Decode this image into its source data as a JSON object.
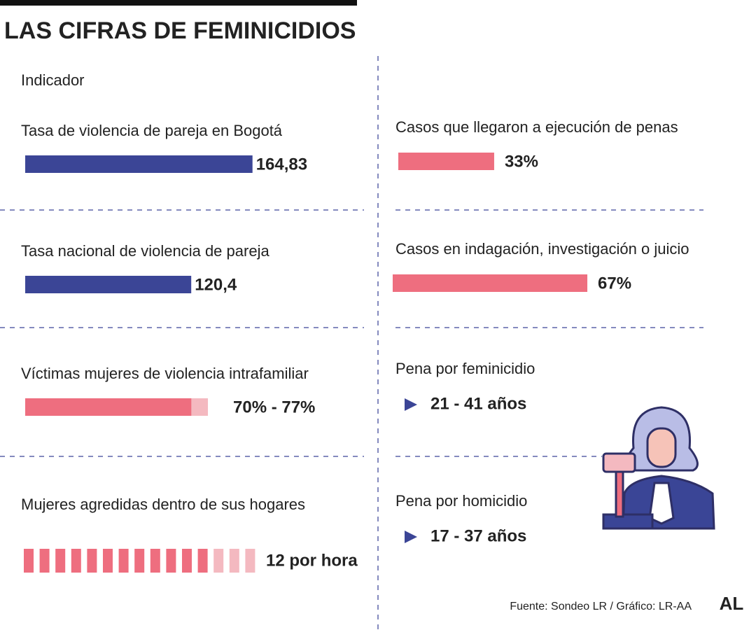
{
  "title": "LAS CIFRAS DE FEMINICIDIOS",
  "column_header": "Indicador",
  "left": [
    {
      "label": "Tasa de violencia de pareja en Bogotá",
      "value": 164.83,
      "value_label": "164,83"
    },
    {
      "label": "Tasa nacional de violencia de pareja",
      "value": 120.4,
      "value_label": "120,4"
    },
    {
      "label": "Víctimas mujeres de violencia intrafamiliar",
      "values": [
        70,
        77
      ],
      "value_label": "70% - 77%"
    },
    {
      "label": "Mujeres agredidas dentro de sus hogares",
      "value": 12,
      "value_label": "12 por hora"
    }
  ],
  "right": [
    {
      "label": "Casos que llegaron a ejecución de penas",
      "value": 33,
      "value_label": "33%"
    },
    {
      "label": "Casos en indagación, investigación o juicio",
      "value": 67,
      "value_label": "67%"
    },
    {
      "label": "Pena por feminicidio",
      "text": "21 - 41 años"
    },
    {
      "label": "Pena por homicidio",
      "text": "17 - 37 años"
    }
  ],
  "source": "Fuente: Sondeo LR / Gráfico: LR-AA",
  "logo": "AL"
}
